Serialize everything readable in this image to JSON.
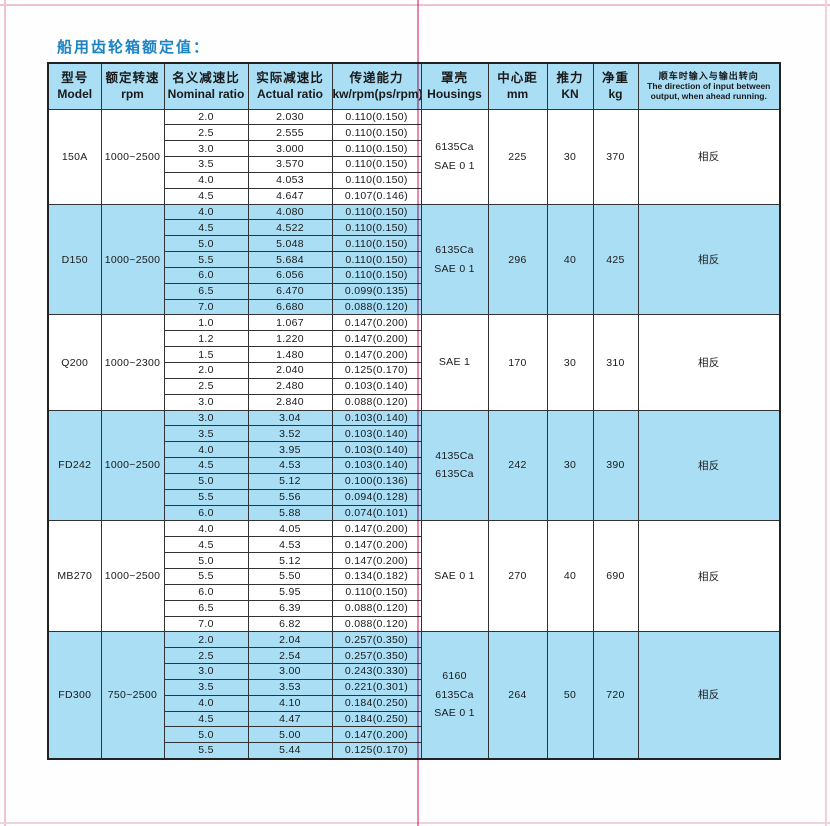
{
  "page": {
    "title": "船用齿轮箱额定值："
  },
  "colors": {
    "accent_blue": "#a9def5",
    "title_blue": "#1c83c4",
    "center_line_pink": "#ee86ab",
    "edge_line_pink": "#eec3d2",
    "border": "#333333"
  },
  "table": {
    "headers": [
      {
        "zh": "型号",
        "en": "Model"
      },
      {
        "zh": "额定转速",
        "en": "rpm"
      },
      {
        "zh": "名义减速比",
        "en": "Nominal ratio"
      },
      {
        "zh": "实际减速比",
        "en": "Actual ratio"
      },
      {
        "zh": "传递能力",
        "en": "kw/rpm(ps/rpm)"
      },
      {
        "zh": "罩壳",
        "en": "Housings"
      },
      {
        "zh": "中心距",
        "en": "mm"
      },
      {
        "zh": "推力",
        "en": "KN"
      },
      {
        "zh": "净重",
        "en": "kg"
      },
      {
        "zh": "顺车时输入与输出转向",
        "en": "The direction of input between output, when ahead running."
      }
    ],
    "models": [
      {
        "model": "150A",
        "rpm": "1000~2500",
        "housings": "6135Ca\nSAE 0 1",
        "mm": "225",
        "kn": "30",
        "kg": "370",
        "direction": "相反",
        "shaded": false,
        "rows": [
          [
            "2.0",
            "2.030",
            "0.110(0.150)"
          ],
          [
            "2.5",
            "2.555",
            "0.110(0.150)"
          ],
          [
            "3.0",
            "3.000",
            "0.110(0.150)"
          ],
          [
            "3.5",
            "3.570",
            "0.110(0.150)"
          ],
          [
            "4.0",
            "4.053",
            "0.110(0.150)"
          ],
          [
            "4.5",
            "4.647",
            "0.107(0.146)"
          ]
        ]
      },
      {
        "model": "D150",
        "rpm": "1000~2500",
        "housings": "6135Ca\nSAE 0 1",
        "mm": "296",
        "kn": "40",
        "kg": "425",
        "direction": "相反",
        "shaded": true,
        "rows": [
          [
            "4.0",
            "4.080",
            "0.110(0.150)"
          ],
          [
            "4.5",
            "4.522",
            "0.110(0.150)"
          ],
          [
            "5.0",
            "5.048",
            "0.110(0.150)"
          ],
          [
            "5.5",
            "5.684",
            "0.110(0.150)"
          ],
          [
            "6.0",
            "6.056",
            "0.110(0.150)"
          ],
          [
            "6.5",
            "6.470",
            "0.099(0.135)"
          ],
          [
            "7.0",
            "6.680",
            "0.088(0.120)"
          ]
        ]
      },
      {
        "model": "Q200",
        "rpm": "1000~2300",
        "housings": "SAE 1",
        "mm": "170",
        "kn": "30",
        "kg": "310",
        "direction": "相反",
        "shaded": false,
        "rows": [
          [
            "1.0",
            "1.067",
            "0.147(0.200)"
          ],
          [
            "1.2",
            "1.220",
            "0.147(0.200)"
          ],
          [
            "1.5",
            "1.480",
            "0.147(0.200)"
          ],
          [
            "2.0",
            "2.040",
            "0.125(0.170)"
          ],
          [
            "2.5",
            "2.480",
            "0.103(0.140)"
          ],
          [
            "3.0",
            "2.840",
            "0.088(0.120)"
          ]
        ]
      },
      {
        "model": "FD242",
        "rpm": "1000~2500",
        "housings": "4135Ca\n6135Ca",
        "mm": "242",
        "kn": "30",
        "kg": "390",
        "direction": "相反",
        "shaded": true,
        "rows": [
          [
            "3.0",
            "3.04",
            "0.103(0.140)"
          ],
          [
            "3.5",
            "3.52",
            "0.103(0.140)"
          ],
          [
            "4.0",
            "3.95",
            "0.103(0.140)"
          ],
          [
            "4.5",
            "4.53",
            "0.103(0.140)"
          ],
          [
            "5.0",
            "5.12",
            "0.100(0.136)"
          ],
          [
            "5.5",
            "5.56",
            "0.094(0.128)"
          ],
          [
            "6.0",
            "5.88",
            "0.074(0.101)"
          ]
        ]
      },
      {
        "model": "MB270",
        "rpm": "1000~2500",
        "housings": "SAE 0 1",
        "mm": "270",
        "kn": "40",
        "kg": "690",
        "direction": "相反",
        "shaded": false,
        "rows": [
          [
            "4.0",
            "4.05",
            "0.147(0.200)"
          ],
          [
            "4.5",
            "4.53",
            "0.147(0.200)"
          ],
          [
            "5.0",
            "5.12",
            "0.147(0.200)"
          ],
          [
            "5.5",
            "5.50",
            "0.134(0.182)"
          ],
          [
            "6.0",
            "5.95",
            "0.110(0.150)"
          ],
          [
            "6.5",
            "6.39",
            "0.088(0.120)"
          ],
          [
            "7.0",
            "6.82",
            "0.088(0.120)"
          ]
        ]
      },
      {
        "model": "FD300",
        "rpm": "750~2500",
        "housings": "6160\n6135Ca\nSAE 0 1",
        "mm": "264",
        "kn": "50",
        "kg": "720",
        "direction": "相反",
        "shaded": true,
        "rows": [
          [
            "2.0",
            "2.04",
            "0.257(0.350)"
          ],
          [
            "2.5",
            "2.54",
            "0.257(0.350)"
          ],
          [
            "3.0",
            "3.00",
            "0.243(0.330)"
          ],
          [
            "3.5",
            "3.53",
            "0.221(0.301)"
          ],
          [
            "4.0",
            "4.10",
            "0.184(0.250)"
          ],
          [
            "4.5",
            "4.47",
            "0.184(0.250)"
          ],
          [
            "5.0",
            "5.00",
            "0.147(0.200)"
          ],
          [
            "5.5",
            "5.44",
            "0.125(0.170)"
          ]
        ]
      }
    ]
  }
}
